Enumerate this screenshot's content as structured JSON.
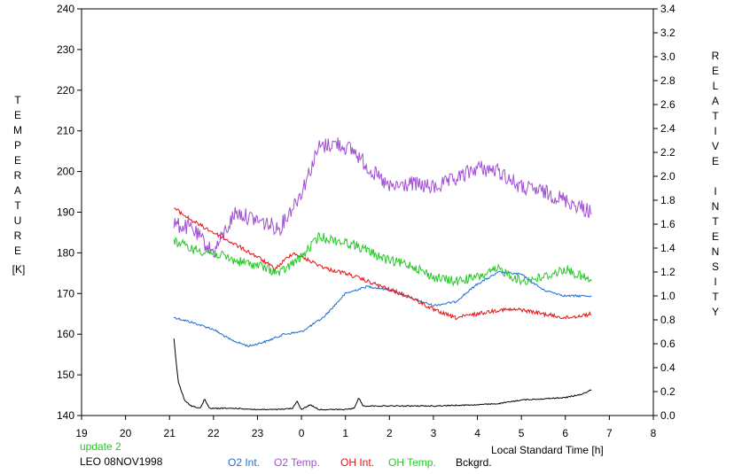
{
  "chart_data": {
    "type": "line",
    "xlabel": "Local Standard Time [h]",
    "ylabel_left": "TEMPERATURE",
    "ylabel_left_unit": "[K]",
    "ylabel_right": "RELATIVE INTENSITY",
    "x_tick_labels": [
      "19",
      "20",
      "21",
      "22",
      "23",
      "0",
      "1",
      "2",
      "3",
      "4",
      "5",
      "6",
      "7",
      "8"
    ],
    "x_range_hours_continuous": [
      19,
      32
    ],
    "y_left_range": [
      140,
      240
    ],
    "y_left_ticks": [
      140,
      150,
      160,
      170,
      180,
      190,
      200,
      210,
      220,
      230,
      240
    ],
    "y_right_range": [
      0.0,
      3.4
    ],
    "y_right_ticks": [
      "0.0",
      "0.2",
      "0.4",
      "0.6",
      "0.8",
      "1.0",
      "1.2",
      "1.4",
      "1.6",
      "1.8",
      "2.0",
      "2.2",
      "2.4",
      "2.6",
      "2.8",
      "3.0",
      "3.2",
      "3.4"
    ],
    "grid": false,
    "series": [
      {
        "name": "O2 Int.",
        "color": "#1e6ed2",
        "axis": "right",
        "points": [
          [
            21.1,
            0.82
          ],
          [
            21.5,
            0.78
          ],
          [
            22.0,
            0.72
          ],
          [
            22.4,
            0.63
          ],
          [
            22.8,
            0.58
          ],
          [
            23.2,
            0.62
          ],
          [
            23.6,
            0.68
          ],
          [
            24.0,
            0.7
          ],
          [
            24.5,
            0.82
          ],
          [
            25.0,
            1.02
          ],
          [
            25.5,
            1.08
          ],
          [
            26.0,
            1.05
          ],
          [
            26.5,
            0.98
          ],
          [
            27.0,
            0.92
          ],
          [
            27.5,
            0.95
          ],
          [
            28.0,
            1.1
          ],
          [
            28.5,
            1.2
          ],
          [
            29.0,
            1.18
          ],
          [
            29.5,
            1.05
          ],
          [
            30.0,
            1.0
          ],
          [
            30.6,
            1.0
          ]
        ]
      },
      {
        "name": "O2 Temp.",
        "color": "#a050d2",
        "axis": "left",
        "points": [
          [
            21.1,
            187
          ],
          [
            21.5,
            186
          ],
          [
            22.0,
            180
          ],
          [
            22.5,
            190
          ],
          [
            23.0,
            188
          ],
          [
            23.5,
            186
          ],
          [
            24.0,
            195
          ],
          [
            24.4,
            206
          ],
          [
            24.8,
            207
          ],
          [
            25.2,
            205
          ],
          [
            25.6,
            200
          ],
          [
            26.0,
            196
          ],
          [
            26.5,
            197
          ],
          [
            27.0,
            196
          ],
          [
            27.5,
            198
          ],
          [
            28.0,
            201
          ],
          [
            28.5,
            200
          ],
          [
            29.0,
            196
          ],
          [
            29.5,
            195
          ],
          [
            30.0,
            193
          ],
          [
            30.6,
            190
          ]
        ]
      },
      {
        "name": "OH Int.",
        "color": "#e61414",
        "axis": "left",
        "points": [
          [
            21.1,
            191
          ],
          [
            21.5,
            188
          ],
          [
            22.0,
            185
          ],
          [
            22.5,
            182
          ],
          [
            23.0,
            179
          ],
          [
            23.4,
            176
          ],
          [
            23.8,
            180
          ],
          [
            24.2,
            178
          ],
          [
            24.6,
            176
          ],
          [
            25.0,
            175
          ],
          [
            25.5,
            173
          ],
          [
            26.0,
            171
          ],
          [
            26.5,
            169
          ],
          [
            27.0,
            166
          ],
          [
            27.5,
            164
          ],
          [
            28.0,
            165
          ],
          [
            28.5,
            166
          ],
          [
            29.0,
            166
          ],
          [
            29.5,
            165
          ],
          [
            30.0,
            164
          ],
          [
            30.6,
            165
          ]
        ]
      },
      {
        "name": "OH Temp.",
        "color": "#28c828",
        "axis": "left",
        "points": [
          [
            21.1,
            183
          ],
          [
            21.5,
            181
          ],
          [
            22.0,
            180
          ],
          [
            22.5,
            178
          ],
          [
            23.0,
            177
          ],
          [
            23.5,
            175
          ],
          [
            24.0,
            179
          ],
          [
            24.4,
            184
          ],
          [
            24.8,
            183
          ],
          [
            25.2,
            182
          ],
          [
            25.6,
            180
          ],
          [
            26.0,
            178
          ],
          [
            26.5,
            177
          ],
          [
            27.0,
            174
          ],
          [
            27.5,
            173
          ],
          [
            28.0,
            174
          ],
          [
            28.5,
            176
          ],
          [
            29.0,
            173
          ],
          [
            29.5,
            174
          ],
          [
            30.0,
            176
          ],
          [
            30.6,
            173
          ]
        ]
      },
      {
        "name": "Bckgrd.",
        "color": "#000000",
        "axis": "right",
        "points": [
          [
            21.1,
            0.64
          ],
          [
            21.15,
            0.45
          ],
          [
            21.2,
            0.28
          ],
          [
            21.35,
            0.12
          ],
          [
            21.5,
            0.08
          ],
          [
            21.7,
            0.06
          ],
          [
            21.8,
            0.14
          ],
          [
            21.9,
            0.06
          ],
          [
            22.5,
            0.06
          ],
          [
            23.0,
            0.05
          ],
          [
            23.5,
            0.05
          ],
          [
            23.8,
            0.06
          ],
          [
            23.9,
            0.12
          ],
          [
            24.0,
            0.05
          ],
          [
            24.2,
            0.09
          ],
          [
            24.4,
            0.05
          ],
          [
            25.0,
            0.05
          ],
          [
            25.2,
            0.06
          ],
          [
            25.3,
            0.15
          ],
          [
            25.4,
            0.08
          ],
          [
            26.0,
            0.08
          ],
          [
            27.0,
            0.08
          ],
          [
            28.0,
            0.09
          ],
          [
            28.5,
            0.1
          ],
          [
            29.0,
            0.13
          ],
          [
            29.5,
            0.14
          ],
          [
            30.0,
            0.15
          ],
          [
            30.4,
            0.18
          ],
          [
            30.6,
            0.22
          ]
        ]
      }
    ]
  },
  "footer": {
    "status": "update 2",
    "station": "LEO 08NOV1998"
  },
  "colors": {
    "axis": "#000000",
    "background": "#ffffff",
    "status_text": "#28c828"
  }
}
